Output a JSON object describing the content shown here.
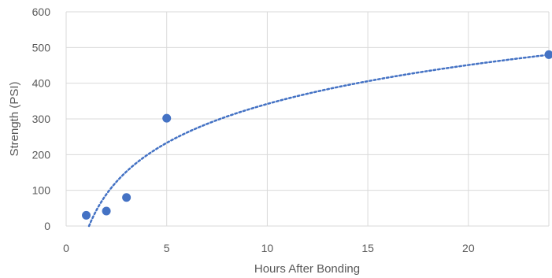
{
  "chart_data": {
    "type": "scatter",
    "xlabel": "Hours After Bonding",
    "ylabel": "Strength (PSI)",
    "xlim": [
      0,
      24
    ],
    "ylim": [
      0,
      600
    ],
    "xticks": [
      "0",
      "5",
      "10",
      "15",
      "20"
    ],
    "yticks": [
      "0",
      "100",
      "200",
      "300",
      "400",
      "500",
      "600"
    ],
    "grid": true,
    "legend": "none",
    "series": [
      {
        "x": [
          1,
          2,
          3,
          5,
          24
        ],
        "y": [
          30,
          42,
          80,
          302,
          480
        ],
        "color": "#4472C4",
        "trendline": {
          "type": "logarithmic",
          "style": "dotted",
          "color": "#4472C4"
        }
      }
    ]
  }
}
